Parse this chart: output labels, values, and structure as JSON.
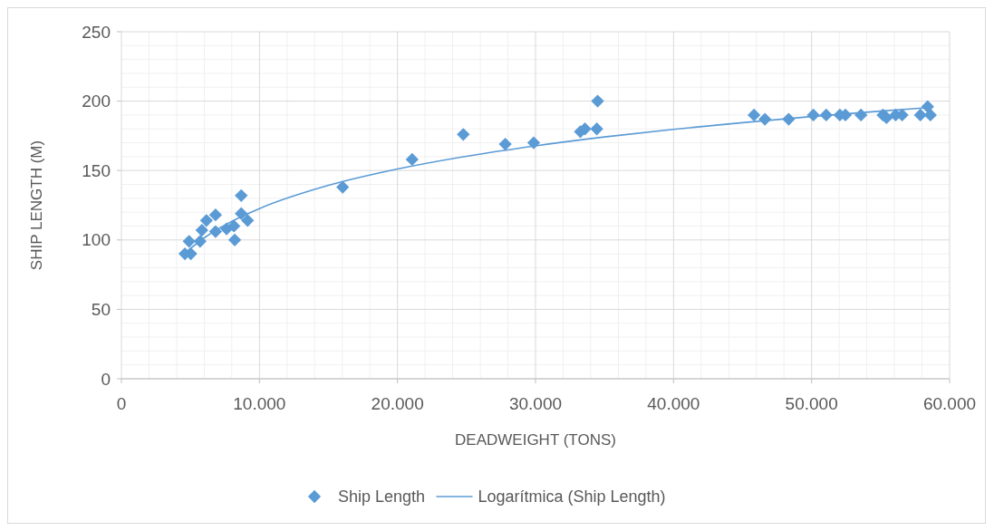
{
  "chart_data": {
    "type": "scatter",
    "xlabel": "DEADWEIGHT (TONS)",
    "ylabel": "SHIP LENGTH (M)",
    "xlim": [
      0,
      60000
    ],
    "ylim": [
      0,
      250
    ],
    "xticks": [
      0,
      {
        "value": 10000,
        "label": "10.000"
      },
      {
        "value": 20000,
        "label": "20.000"
      },
      {
        "value": 30000,
        "label": "30.000"
      },
      {
        "value": 40000,
        "label": "40.000"
      },
      {
        "value": 50000,
        "label": "50.000"
      },
      {
        "value": 60000,
        "label": "60.000"
      }
    ],
    "yticks": [
      0,
      50,
      100,
      150,
      200,
      250
    ],
    "grid": true,
    "legend": "bottom",
    "series": [
      {
        "name": "Ship Length",
        "marker": "diamond",
        "color": "#5b9bd5",
        "x": [
          4600,
          4900,
          5030,
          5700,
          5830,
          6160,
          6820,
          6820,
          7620,
          8150,
          8210,
          8680,
          8680,
          9140,
          16030,
          21060,
          24770,
          27810,
          29870,
          33250,
          33580,
          34440,
          34500,
          45830,
          46620,
          48340,
          50130,
          51060,
          52050,
          52450,
          53580,
          55170,
          55430,
          56090,
          56560,
          57880,
          58410,
          58610
        ],
        "values": [
          90,
          99,
          90,
          99,
          107,
          114,
          118,
          106,
          108,
          110,
          100,
          132,
          119,
          114,
          138,
          158,
          176,
          169,
          170,
          178,
          180,
          180,
          200,
          190,
          187,
          187,
          190,
          190,
          190,
          190,
          190,
          190,
          188,
          190,
          190,
          190,
          196,
          190
        ]
      },
      {
        "name": "Logarítmica (Ship Length)",
        "type": "line",
        "color": "#5b9bd5",
        "line_style": "solid",
        "x": [
          4600,
          6000,
          8000,
          10000,
          15000,
          20000,
          25000,
          30000,
          35000,
          40000,
          45000,
          50000,
          55000,
          58600
        ],
        "values": [
          90.6,
          101.5,
          113.4,
          122.6,
          139.3,
          151.1,
          160.3,
          167.8,
          174.2,
          179.7,
          184.5,
          188.9,
          192.8,
          195.4
        ]
      }
    ]
  }
}
